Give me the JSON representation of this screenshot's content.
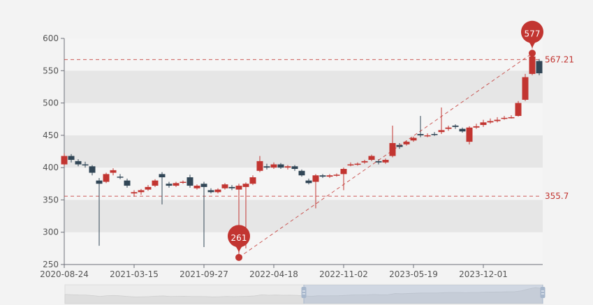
{
  "chart_data": {
    "type": "candlestick",
    "title": "",
    "xlabel": "",
    "ylabel": "",
    "ylim": [
      250,
      600
    ],
    "y_ticks": [
      "250",
      "300",
      "350",
      "400",
      "450",
      "500",
      "550",
      "600"
    ],
    "x_tick_labels": [
      "2020-08-24",
      "2021-03-15",
      "2021-09-27",
      "2022-04-18",
      "2022-11-02",
      "2023-05-19",
      "2023-12-01"
    ],
    "grid": "alternating horizontal bands",
    "colors": {
      "up": "#c23531",
      "down": "#314656",
      "mark": "#c23531",
      "band_dark": "#e6e6e6",
      "band_light": "#f5f5f5"
    },
    "candle_fields": [
      "open",
      "close",
      "low",
      "high"
    ],
    "candles": [
      [
        405,
        418,
        403,
        422
      ],
      [
        418,
        412,
        408,
        421
      ],
      [
        410,
        405,
        402,
        413
      ],
      [
        405,
        404,
        400,
        409
      ],
      [
        402,
        392,
        388,
        404
      ],
      [
        380,
        375,
        279,
        384
      ],
      [
        378,
        390,
        376,
        392
      ],
      [
        392,
        396,
        388,
        399
      ],
      [
        386,
        385,
        382,
        390
      ],
      [
        380,
        372,
        369,
        383
      ],
      [
        360,
        362,
        355,
        365
      ],
      [
        362,
        365,
        358,
        367
      ],
      [
        366,
        370,
        364,
        373
      ],
      [
        372,
        380,
        370,
        382
      ],
      [
        390,
        385,
        343,
        393
      ],
      [
        375,
        372,
        369,
        378
      ],
      [
        372,
        376,
        370,
        378
      ],
      [
        378,
        378,
        375,
        380
      ],
      [
        385,
        372,
        369,
        389
      ],
      [
        368,
        372,
        366,
        374
      ],
      [
        375,
        370,
        277,
        378
      ],
      [
        365,
        362,
        360,
        368
      ],
      [
        362,
        366,
        360,
        368
      ],
      [
        368,
        374,
        366,
        376
      ],
      [
        370,
        368,
        365,
        373
      ],
      [
        366,
        372,
        261,
        375
      ],
      [
        370,
        375,
        275,
        377
      ],
      [
        375,
        385,
        373,
        388
      ],
      [
        395,
        410,
        393,
        418
      ],
      [
        402,
        400,
        397,
        406
      ],
      [
        400,
        405,
        398,
        408
      ],
      [
        405,
        400,
        398,
        407
      ],
      [
        400,
        402,
        397,
        404
      ],
      [
        402,
        398,
        395,
        404
      ],
      [
        395,
        388,
        386,
        397
      ],
      [
        380,
        376,
        374,
        383
      ],
      [
        378,
        388,
        337,
        390
      ],
      [
        388,
        386,
        384,
        390
      ],
      [
        386,
        388,
        384,
        390
      ],
      [
        388,
        389,
        386,
        391
      ],
      [
        390,
        398,
        365,
        400
      ],
      [
        404,
        405,
        402,
        408
      ],
      [
        405,
        406,
        403,
        408
      ],
      [
        408,
        410,
        406,
        412
      ],
      [
        412,
        418,
        410,
        420
      ],
      [
        410,
        408,
        405,
        413
      ],
      [
        408,
        412,
        406,
        414
      ],
      [
        418,
        438,
        416,
        465
      ],
      [
        435,
        432,
        429,
        438
      ],
      [
        436,
        440,
        434,
        442
      ],
      [
        442,
        446,
        440,
        448
      ],
      [
        452,
        450,
        447,
        480
      ],
      [
        450,
        450,
        447,
        453
      ],
      [
        452,
        451,
        449,
        455
      ],
      [
        455,
        458,
        452,
        493
      ],
      [
        460,
        462,
        457,
        465
      ],
      [
        465,
        463,
        460,
        467
      ],
      [
        460,
        456,
        454,
        462
      ],
      [
        440,
        462,
        436,
        464
      ],
      [
        462,
        464,
        460,
        468
      ],
      [
        466,
        470,
        463,
        474
      ],
      [
        470,
        472,
        468,
        476
      ],
      [
        472,
        474,
        470,
        478
      ],
      [
        476,
        477,
        474,
        480
      ],
      [
        478,
        478,
        476,
        481
      ],
      [
        480,
        500,
        479,
        503
      ],
      [
        505,
        540,
        503,
        545
      ],
      [
        545,
        572,
        543,
        577
      ],
      [
        565,
        546,
        543,
        568
      ]
    ],
    "tick_every": 10,
    "mark_points": [
      {
        "label": "261",
        "type": "min",
        "index": 25,
        "value": 261
      },
      {
        "label": "577",
        "type": "max",
        "index": 67,
        "value": 577
      }
    ],
    "mark_lines": [
      {
        "label": "567.21",
        "value": 567.21
      },
      {
        "label": "355.7",
        "value": 355.7
      }
    ],
    "mark_line_min_to_max": true,
    "data_zoom": {
      "start": 50,
      "end": 100
    }
  }
}
